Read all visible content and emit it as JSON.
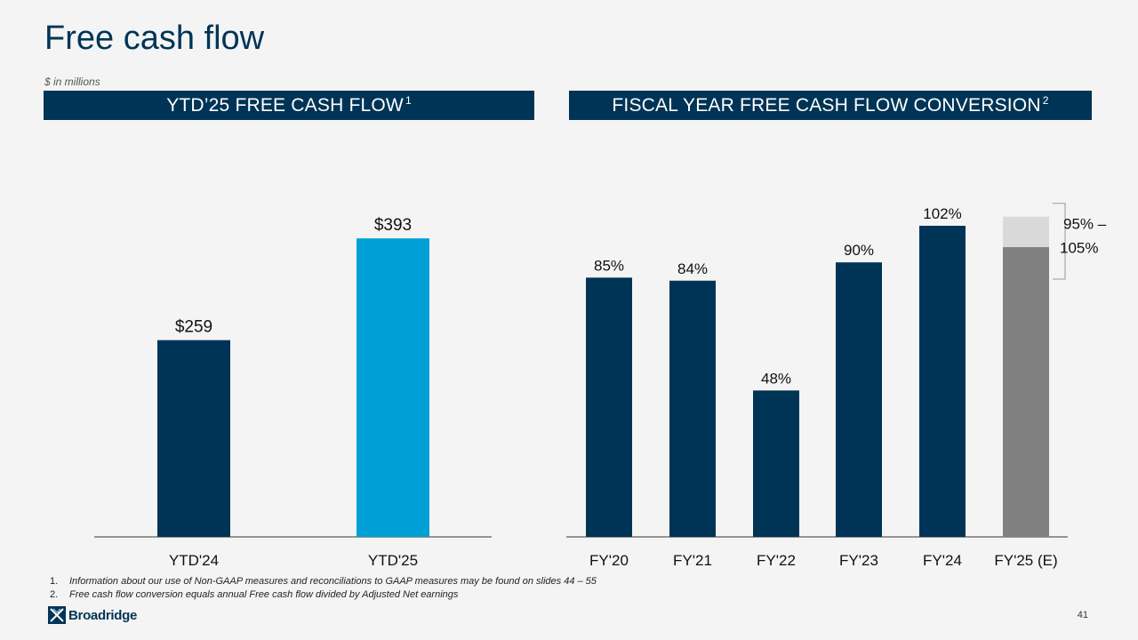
{
  "slide": {
    "title": "Free cash flow",
    "units_note": "$ in millions",
    "page_number": "41",
    "logo_text": "Broadridge",
    "logo_mark_icon": "broadridge-logo-icon"
  },
  "banners": {
    "left": {
      "text": "YTD’25 FREE CASH FLOW",
      "sup": "1"
    },
    "right": {
      "text": "FISCAL YEAR FREE CASH FLOW CONVERSION",
      "sup": "2"
    }
  },
  "footnotes": [
    {
      "num": "1.",
      "text": "Information about our use of Non-GAAP measures and reconciliations to GAAP measures may be found on slides 44 – 55"
    },
    {
      "num": "2.",
      "text": "Free cash flow conversion equals annual Free cash flow divided by Adjusted Net earnings"
    }
  ],
  "colors": {
    "navy": "#003456",
    "cyan": "#00a0d6",
    "gray_dark": "#808080",
    "gray_light": "#d9d9d9",
    "axis": "#333333"
  },
  "chart_data": [
    {
      "type": "bar",
      "title": "YTD’25 FREE CASH FLOW",
      "units": "$ in millions",
      "categories": [
        "YTD'24",
        "YTD'25"
      ],
      "values": [
        259,
        393
      ],
      "labels": [
        "$259",
        "$393"
      ],
      "bar_colors": [
        "#003456",
        "#00a0d6"
      ],
      "ylim": [
        0,
        550
      ]
    },
    {
      "type": "bar",
      "title": "FISCAL YEAR FREE CASH FLOW CONVERSION",
      "units": "percent",
      "categories": [
        "FY'20",
        "FY'21",
        "FY'22",
        "FY'23",
        "FY'24",
        "FY'25 (E)"
      ],
      "values": [
        85,
        84,
        48,
        90,
        102,
        null
      ],
      "labels": [
        "85%",
        "84%",
        "48%",
        "90%",
        "102%",
        null
      ],
      "estimate_range": {
        "category": "FY'25 (E)",
        "low": 95,
        "high": 105,
        "label_line1": "95% –",
        "label_line2": "105%"
      },
      "ylim": [
        0,
        130
      ]
    }
  ]
}
